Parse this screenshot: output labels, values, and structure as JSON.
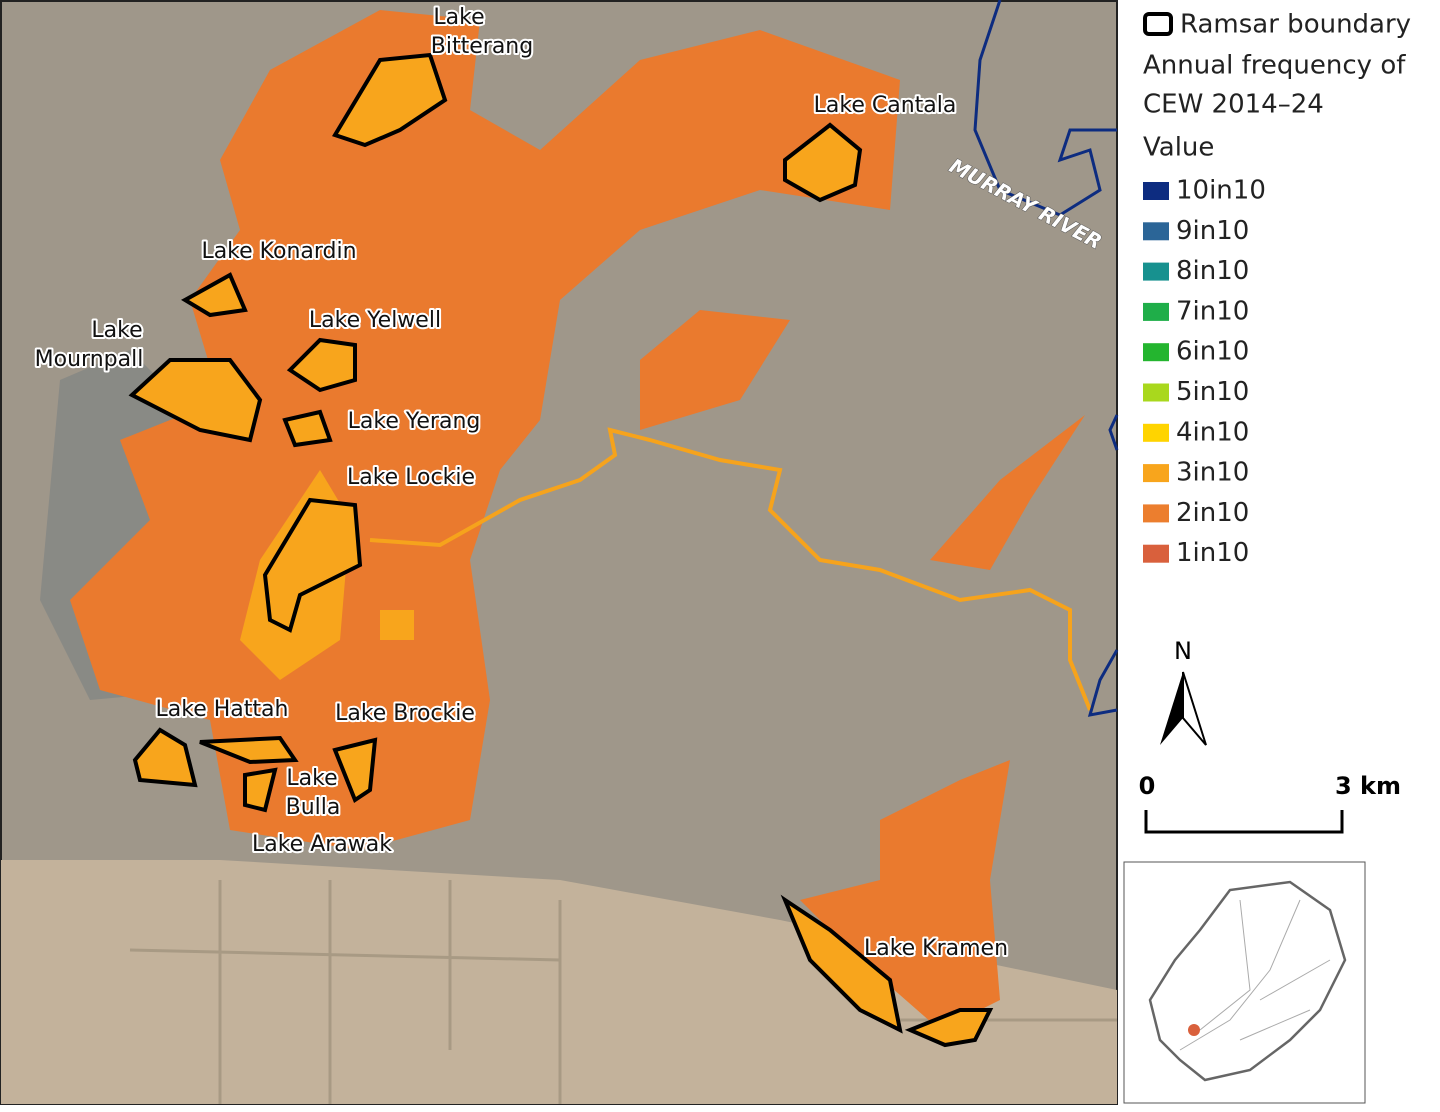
{
  "legend": {
    "boundary": "Ramsar boundary",
    "title_lines": [
      "Annual frequency of",
      "CEW 2014–24"
    ],
    "field": "Value",
    "classes": [
      {
        "label": "10in10",
        "color": "#0d2c80"
      },
      {
        "label": "9in10",
        "color": "#2b6597"
      },
      {
        "label": "8in10",
        "color": "#17918f"
      },
      {
        "label": "7in10",
        "color": "#1fae49"
      },
      {
        "label": "6in10",
        "color": "#24b52f"
      },
      {
        "label": "5in10",
        "color": "#a9d81d"
      },
      {
        "label": "4in10",
        "color": "#ffd400"
      },
      {
        "label": "3in10",
        "color": "#f8a51c"
      },
      {
        "label": "2in10",
        "color": "#ec7e2e"
      },
      {
        "label": "1in10",
        "color": "#d9603c"
      }
    ]
  },
  "lakes": [
    {
      "lines": [
        "Lake",
        "Bitterang"
      ]
    },
    {
      "lines": [
        "Lake Cantala"
      ]
    },
    {
      "lines": [
        "Lake Konardin"
      ]
    },
    {
      "lines": [
        "Lake Yelwell"
      ]
    },
    {
      "lines": [
        "Lake",
        "Mournpall"
      ]
    },
    {
      "lines": [
        "Lake Yerang"
      ]
    },
    {
      "lines": [
        "Lake Lockie"
      ]
    },
    {
      "lines": [
        "Lake Hattah"
      ]
    },
    {
      "lines": [
        "Lake Brockie"
      ]
    },
    {
      "lines": [
        "Lake",
        "Bulla"
      ]
    },
    {
      "lines": [
        "Lake Arawak"
      ]
    },
    {
      "lines": [
        "Lake Kramen"
      ]
    }
  ],
  "river": "MURRAY RIVER",
  "north": "N",
  "scale": {
    "start": "0",
    "end": "3 km"
  }
}
